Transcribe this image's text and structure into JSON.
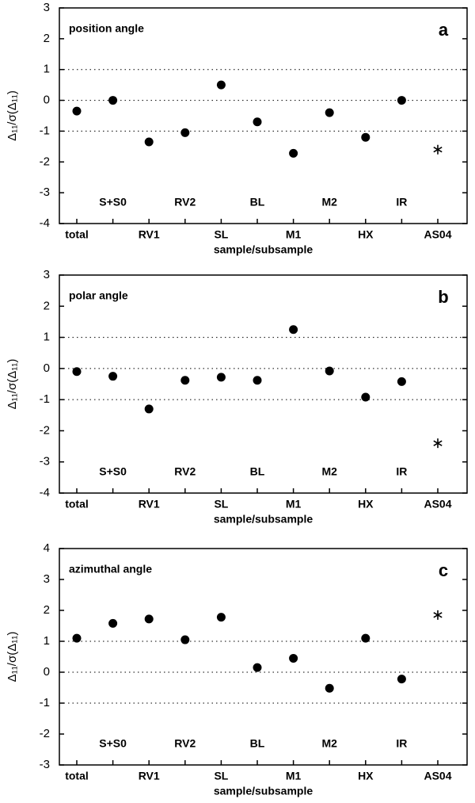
{
  "chart_data": [
    {
      "type": "scatter",
      "title": "position angle",
      "panel": "a",
      "ylabel": "Δ₁₁/σ(Δ₁₁)",
      "xlabel": "sample/subsample",
      "categories": [
        "total",
        "S+S0",
        "RV1",
        "RV2",
        "SL",
        "BL",
        "M1",
        "M2",
        "HX",
        "IR",
        "AS04"
      ],
      "values": [
        -0.35,
        0.0,
        -1.35,
        -1.05,
        0.5,
        -0.7,
        -1.72,
        -0.4,
        -1.2,
        0.0,
        -1.6
      ],
      "markers": [
        "circle",
        "circle",
        "circle",
        "circle",
        "circle",
        "circle",
        "circle",
        "circle",
        "circle",
        "circle",
        "star"
      ],
      "color": "#000000",
      "ylim": [
        -4,
        3
      ],
      "yticks": [
        -4,
        -3,
        -2,
        -1,
        0,
        1,
        2,
        3
      ],
      "hlines": [
        -1,
        0,
        1
      ]
    },
    {
      "type": "scatter",
      "title": "polar angle",
      "panel": "b",
      "ylabel": "Δ₁₁/σ(Δ₁₁)",
      "xlabel": "sample/subsample",
      "categories": [
        "total",
        "S+S0",
        "RV1",
        "RV2",
        "SL",
        "BL",
        "M1",
        "M2",
        "HX",
        "IR",
        "AS04"
      ],
      "values": [
        -0.1,
        -0.25,
        -1.3,
        -0.38,
        -0.28,
        -0.38,
        1.25,
        -0.08,
        -0.92,
        -0.42,
        -2.4
      ],
      "markers": [
        "circle",
        "circle",
        "circle",
        "circle",
        "circle",
        "circle",
        "circle",
        "circle",
        "circle",
        "circle",
        "star"
      ],
      "color": "#000000",
      "ylim": [
        -4,
        3
      ],
      "yticks": [
        -4,
        -3,
        -2,
        -1,
        0,
        1,
        2,
        3
      ],
      "hlines": [
        -1,
        0,
        1
      ]
    },
    {
      "type": "scatter",
      "title": "azimuthal angle",
      "panel": "c",
      "ylabel": "Δ₁₁/σ(Δ₁₁)",
      "xlabel": "sample/subsample",
      "categories": [
        "total",
        "S+S0",
        "RV1",
        "RV2",
        "SL",
        "BL",
        "M1",
        "M2",
        "HX",
        "IR",
        "AS04"
      ],
      "values": [
        1.1,
        1.58,
        1.72,
        1.05,
        1.78,
        0.15,
        0.45,
        -0.52,
        1.1,
        -0.22,
        1.85
      ],
      "markers": [
        "circle",
        "circle",
        "circle",
        "circle",
        "circle",
        "circle",
        "circle",
        "circle",
        "circle",
        "circle",
        "star"
      ],
      "color": "#000000",
      "ylim": [
        -3,
        4
      ],
      "yticks": [
        -3,
        -2,
        -1,
        0,
        1,
        2,
        3,
        4
      ],
      "hlines": [
        -1,
        0,
        1
      ]
    }
  ]
}
